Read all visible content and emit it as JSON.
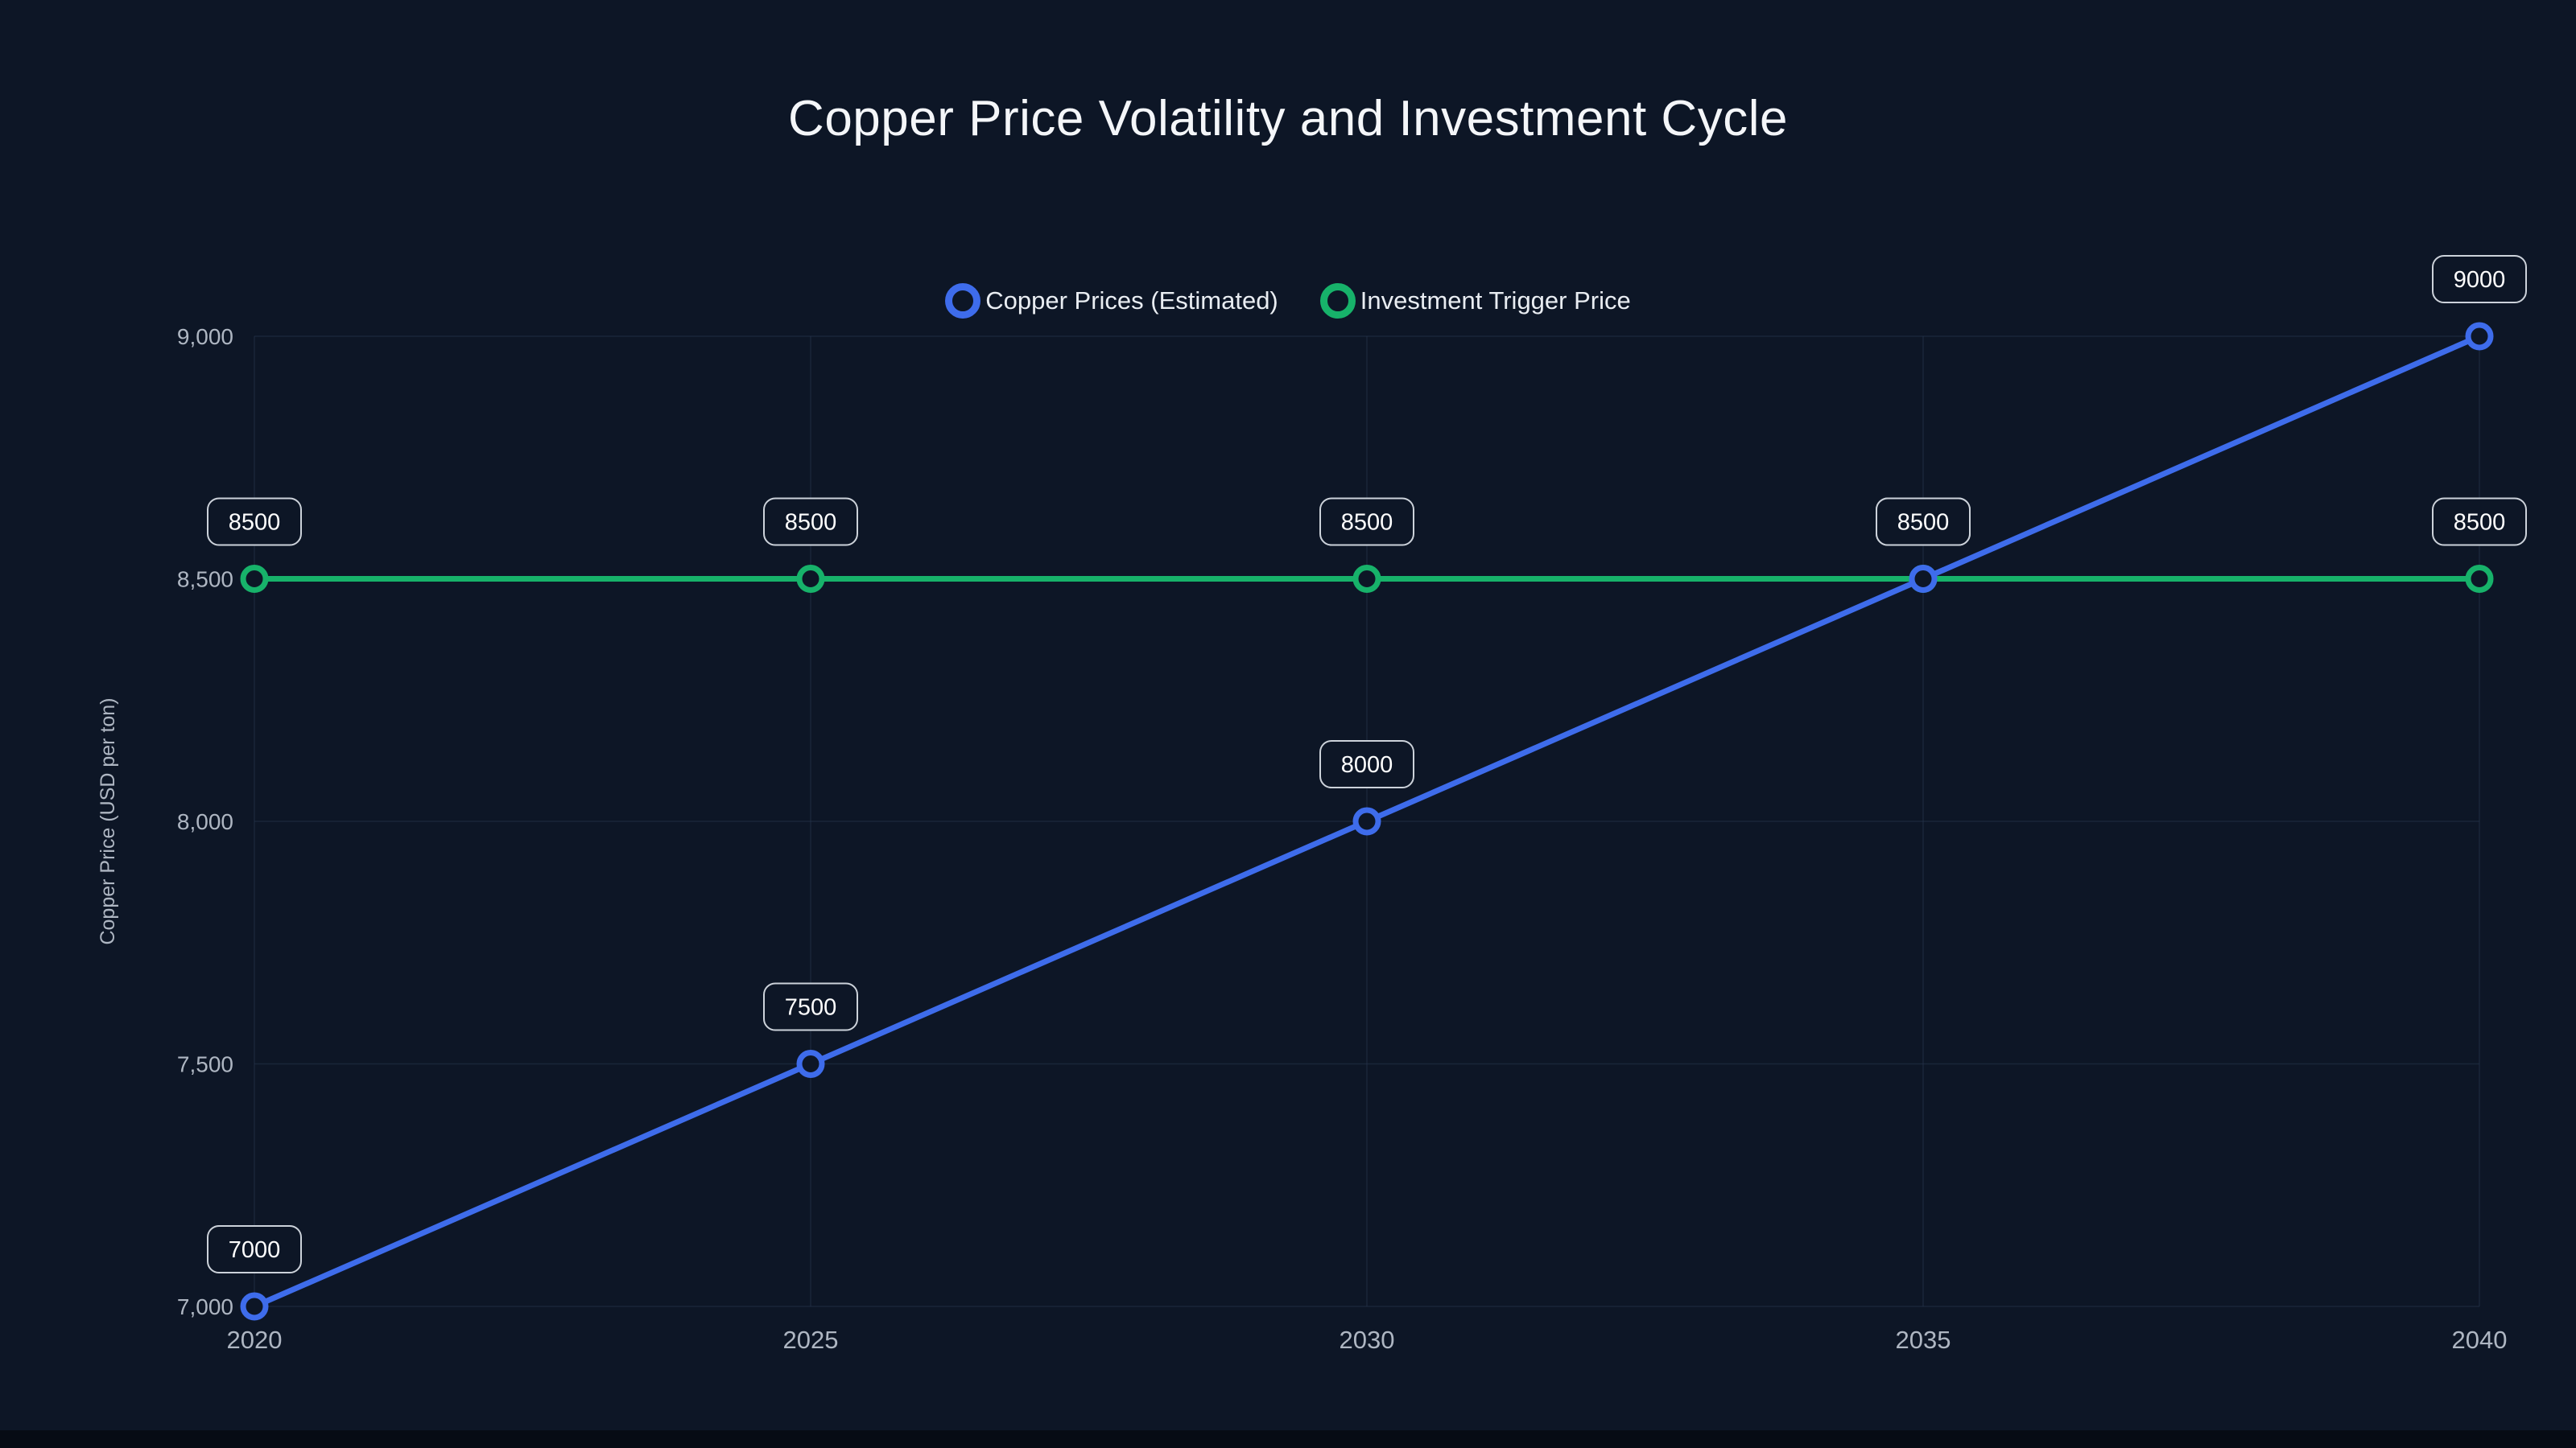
{
  "title": "Copper Price Volatility and Investment Cycle",
  "y_axis_title": "Copper Price (USD per ton)",
  "legend": {
    "items": [
      {
        "label": "Copper Prices (Estimated)",
        "color": "#3e6ceb"
      },
      {
        "label": "Investment Trigger Price",
        "color": "#17b26a"
      }
    ]
  },
  "chart_data": {
    "type": "line",
    "title": "Copper Price Volatility and Investment Cycle",
    "xlabel": "",
    "ylabel": "Copper Price (USD per ton)",
    "x": [
      "2020",
      "2025",
      "2030",
      "2035",
      "2040"
    ],
    "ylim": [
      7000,
      9000
    ],
    "yticks": [
      7000,
      7500,
      8000,
      8500,
      9000
    ],
    "ytick_labels": [
      "7,000",
      "7,500",
      "8,000",
      "8,500",
      "9,000"
    ],
    "grid": true,
    "legend_position": "top-center",
    "series": [
      {
        "name": "Copper Prices (Estimated)",
        "color": "#3e6ceb",
        "values": [
          7000,
          7500,
          8000,
          8500,
          9000
        ],
        "point_labels": [
          "7000",
          "7500",
          "8000",
          "8500",
          "9000"
        ]
      },
      {
        "name": "Investment Trigger Price",
        "color": "#17b26a",
        "values": [
          8500,
          8500,
          8500,
          8500,
          8500
        ],
        "point_labels": [
          "8500",
          "8500",
          "8500",
          "8500",
          "8500"
        ]
      }
    ]
  },
  "colors": {
    "background": "#0d1626",
    "grid": "#24324b",
    "tick_text": "#aeb6c2",
    "badge_border": "#ccd2da",
    "badge_text": "#ffffff",
    "title_text": "#f4f6f9",
    "blue_series": "#3e6ceb",
    "green_series": "#17b26a"
  }
}
